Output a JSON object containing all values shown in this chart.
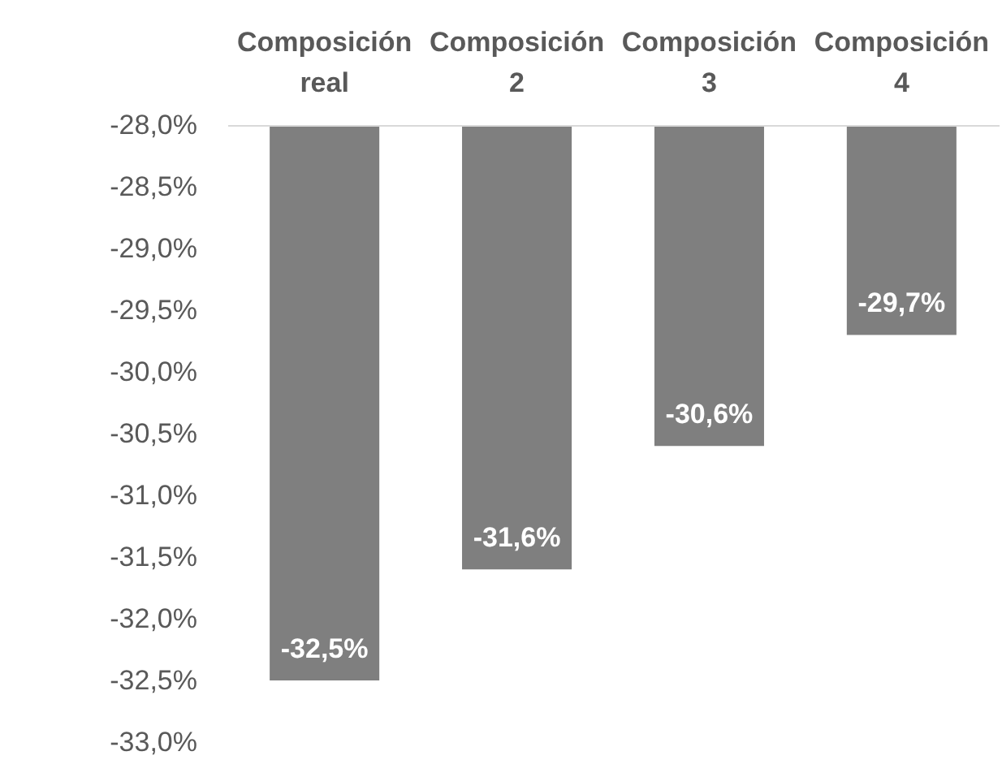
{
  "chart_data": {
    "type": "bar",
    "categories": [
      "Composición real",
      "Composición 2",
      "Composición 3",
      "Composición 4"
    ],
    "values": [
      -32.5,
      -31.6,
      -30.6,
      -29.7
    ],
    "value_labels": [
      "-32,5%",
      "-31,6%",
      "-30,6%",
      "-29,7%"
    ],
    "color": "#7f7f7f",
    "ylim": [
      -33,
      -28
    ],
    "yticks": [
      {
        "value": -28,
        "label": "-28,0%"
      },
      {
        "value": -28.5,
        "label": "-28,5%"
      },
      {
        "value": -29,
        "label": "-29,0%"
      },
      {
        "value": -29.5,
        "label": "-29,5%"
      },
      {
        "value": -30,
        "label": "-30,0%"
      },
      {
        "value": -30.5,
        "label": "-30,5%"
      },
      {
        "value": -31,
        "label": "-31,0%"
      },
      {
        "value": -31.5,
        "label": "-31,5%"
      },
      {
        "value": -32,
        "label": "-32,0%"
      },
      {
        "value": -32.5,
        "label": "-32,5%"
      },
      {
        "value": -33,
        "label": "-33,0%"
      }
    ],
    "grid": false
  }
}
